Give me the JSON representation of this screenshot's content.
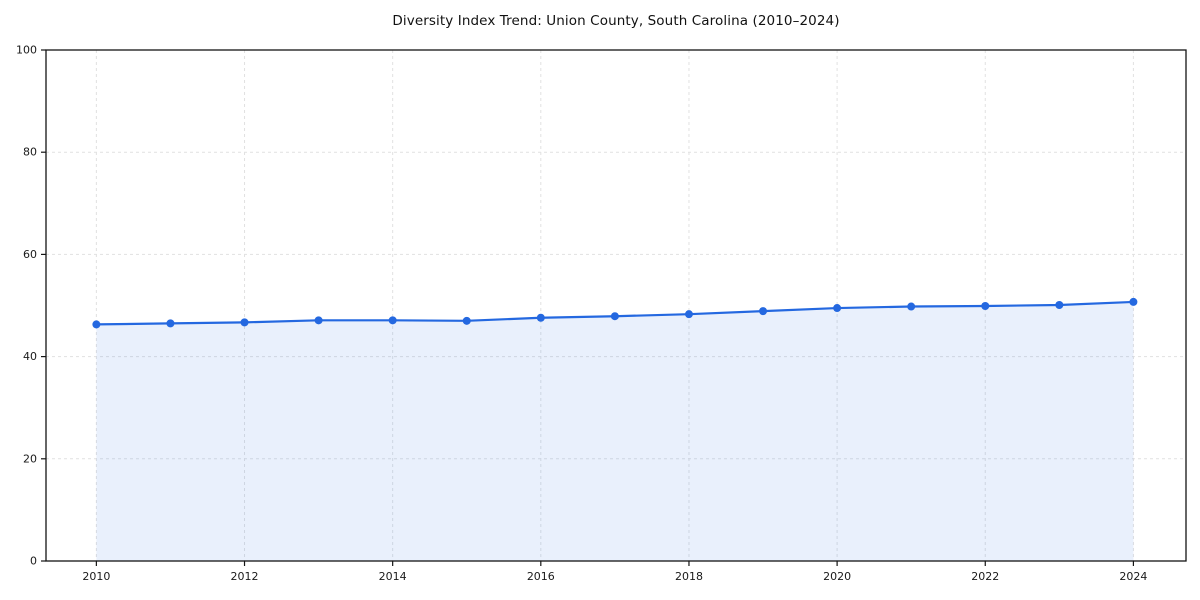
{
  "page": {
    "background": "#FFFFFF"
  },
  "chart_data": {
    "type": "line",
    "title": "Diversity Index Trend: Union County, South Carolina (2010–2024)",
    "xlabel": "",
    "ylabel": "",
    "x": [
      2010,
      2011,
      2012,
      2013,
      2014,
      2015,
      2016,
      2017,
      2018,
      2019,
      2020,
      2021,
      2022,
      2023,
      2024
    ],
    "series": [
      {
        "name": "Diversity Index",
        "values": [
          46.3,
          46.5,
          46.7,
          47.1,
          47.1,
          47.0,
          47.6,
          47.9,
          48.3,
          48.9,
          49.5,
          49.8,
          49.9,
          50.1,
          50.7
        ]
      }
    ],
    "xlim": [
      2009.32,
      2024.71
    ],
    "ylim": [
      0,
      100
    ],
    "xticks": [
      2010,
      2012,
      2014,
      2016,
      2018,
      2020,
      2022,
      2024
    ],
    "yticks": [
      0,
      20,
      40,
      60,
      80,
      100
    ],
    "grid": true,
    "grid_style": "dashed",
    "legend": false,
    "marker": "circle",
    "marker_radius": 4,
    "line_width": 2.2,
    "area_fill": true,
    "colors": {
      "line": "#2468E0",
      "marker": "#2468E0",
      "area_fill": "#2468E0",
      "area_fill_opacity": 0.1,
      "grid": "#E1E1E1",
      "spine": "#141414",
      "tick_text": "#1A1A1A",
      "title_text": "#111111",
      "background": "#FFFFFF"
    }
  }
}
